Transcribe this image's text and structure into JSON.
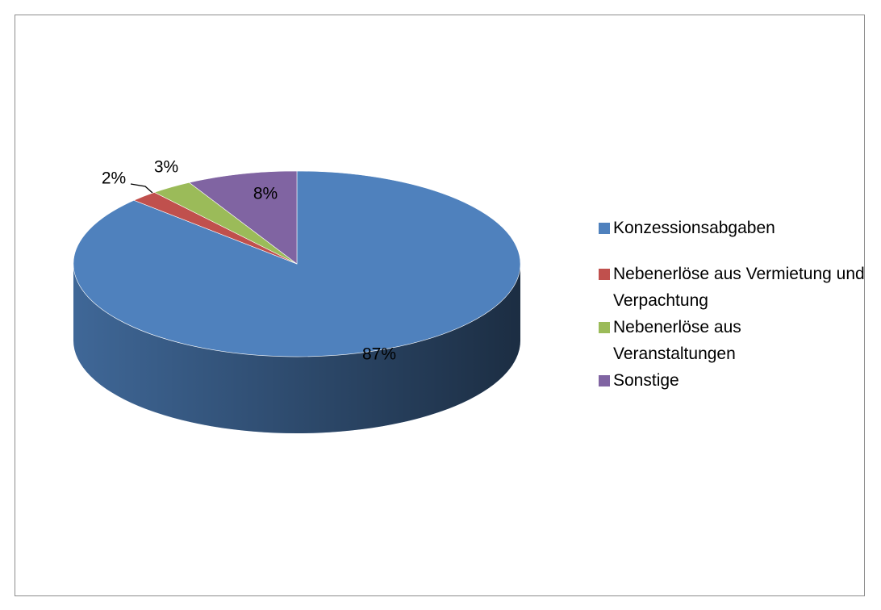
{
  "chart_data": {
    "type": "pie",
    "categories": [
      "Konzessionsabgaben",
      "Nebenerlöse aus Vermietung und Verpachtung",
      "Nebenerlöse aus Veranstaltungen",
      "Sonstige"
    ],
    "values": [
      87,
      2,
      3,
      8
    ],
    "value_labels": [
      "87%",
      "2%",
      "3%",
      "8%"
    ],
    "colors": [
      "#4f81bd",
      "#c0504d",
      "#9bbb59",
      "#8064a2"
    ],
    "legend": "right"
  }
}
